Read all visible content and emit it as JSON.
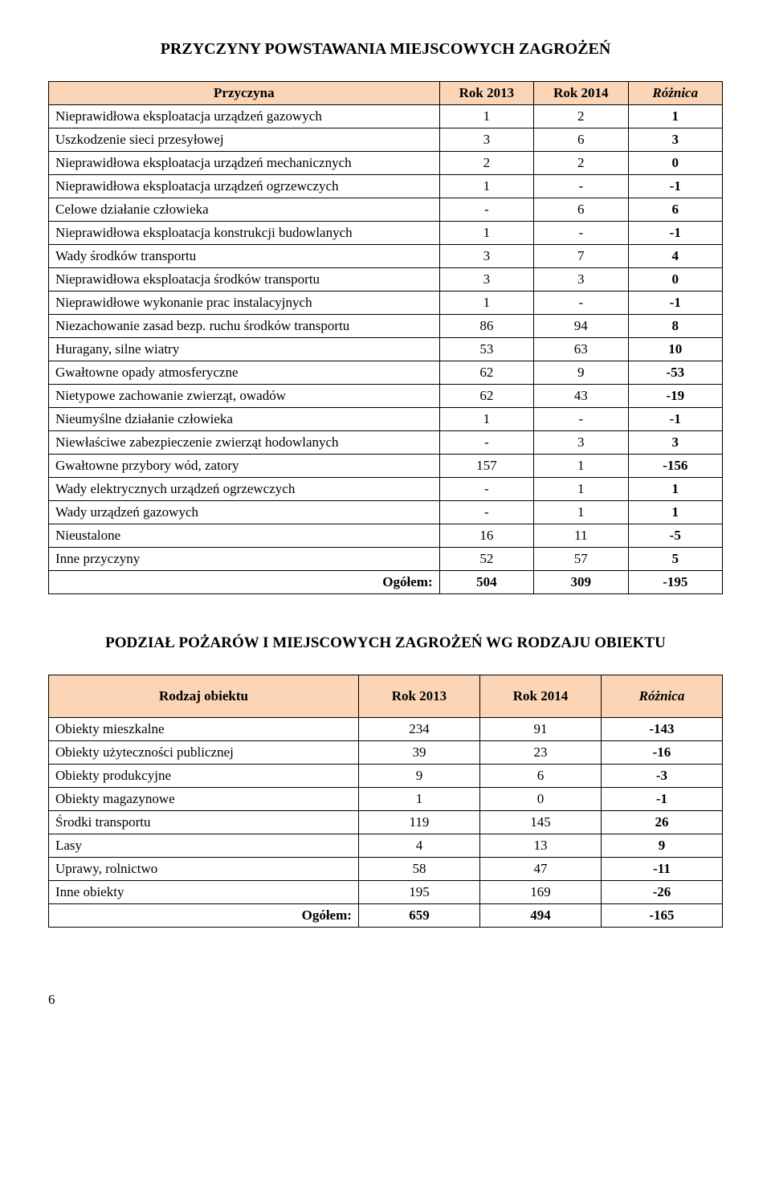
{
  "table1": {
    "title": "PRZYCZYNY POWSTAWANIA MIEJSCOWYCH ZAGROŻEŃ",
    "headers": [
      "Przyczyna",
      "Rok 2013",
      "Rok 2014",
      "Różnica"
    ],
    "col_widths": [
      "58%",
      "14%",
      "14%",
      "14%"
    ],
    "header_bg": "#fbd5b5",
    "rows": [
      {
        "desc": "Nieprawidłowa eksploatacja urządzeń gazowych",
        "v1": "1",
        "v2": "2",
        "d": "1"
      },
      {
        "desc": "Uszkodzenie sieci przesyłowej",
        "v1": "3",
        "v2": "6",
        "d": "3"
      },
      {
        "desc": "Nieprawidłowa eksploatacja urządzeń mechanicznych",
        "v1": "2",
        "v2": "2",
        "d": "0"
      },
      {
        "desc": "Nieprawidłowa eksploatacja urządzeń ogrzewczych",
        "v1": "1",
        "v2": "-",
        "d": "-1"
      },
      {
        "desc": "Celowe działanie człowieka",
        "v1": "-",
        "v2": "6",
        "d": "6"
      },
      {
        "desc": "Nieprawidłowa eksploatacja konstrukcji budowlanych",
        "v1": "1",
        "v2": "-",
        "d": "-1"
      },
      {
        "desc": "Wady środków transportu",
        "v1": "3",
        "v2": "7",
        "d": "4"
      },
      {
        "desc": "Nieprawidłowa eksploatacja środków transportu",
        "v1": "3",
        "v2": "3",
        "d": "0"
      },
      {
        "desc": "Nieprawidłowe wykonanie prac instalacyjnych",
        "v1": "1",
        "v2": "-",
        "d": "-1"
      },
      {
        "desc": "Niezachowanie zasad bezp. ruchu środków transportu",
        "v1": "86",
        "v2": "94",
        "d": "8"
      },
      {
        "desc": "Huragany, silne wiatry",
        "v1": "53",
        "v2": "63",
        "d": "10"
      },
      {
        "desc": "Gwałtowne opady atmosferyczne",
        "v1": "62",
        "v2": "9",
        "d": "-53"
      },
      {
        "desc": "Nietypowe zachowanie zwierząt, owadów",
        "v1": "62",
        "v2": "43",
        "d": "-19"
      },
      {
        "desc": "Nieumyślne działanie człowieka",
        "v1": "1",
        "v2": "-",
        "d": "-1"
      },
      {
        "desc": "Niewłaściwe zabezpieczenie zwierząt hodowlanych",
        "v1": "-",
        "v2": "3",
        "d": "3"
      },
      {
        "desc": "Gwałtowne przybory  wód, zatory",
        "v1": "157",
        "v2": "1",
        "d": "-156"
      },
      {
        "desc": "Wady elektrycznych urządzeń ogrzewczych",
        "v1": "-",
        "v2": "1",
        "d": "1"
      },
      {
        "desc": "Wady urządzeń gazowych",
        "v1": "-",
        "v2": "1",
        "d": "1"
      },
      {
        "desc": "Nieustalone",
        "v1": "16",
        "v2": "11",
        "d": "-5"
      },
      {
        "desc": "Inne przyczyny",
        "v1": "52",
        "v2": "57",
        "d": "5"
      }
    ],
    "total": {
      "desc": "Ogółem:",
      "v1": "504",
      "v2": "309",
      "d": "-195"
    }
  },
  "table2": {
    "title": "PODZIAŁ POŻARÓW I MIEJSCOWYCH ZAGROŻEŃ WG RODZAJU OBIEKTU",
    "headers": [
      "Rodzaj obiektu",
      "Rok 2013",
      "Rok 2014",
      "Różnica"
    ],
    "col_widths": [
      "46%",
      "18%",
      "18%",
      "18%"
    ],
    "header_bg": "#fbd5b5",
    "rows": [
      {
        "desc": "Obiekty mieszkalne",
        "v1": "234",
        "v2": "91",
        "d": "-143"
      },
      {
        "desc": "Obiekty użyteczności publicznej",
        "v1": "39",
        "v2": "23",
        "d": "-16"
      },
      {
        "desc": "Obiekty produkcyjne",
        "v1": "9",
        "v2": "6",
        "d": "-3"
      },
      {
        "desc": "Obiekty magazynowe",
        "v1": "1",
        "v2": "0",
        "d": "-1"
      },
      {
        "desc": "Środki transportu",
        "v1": "119",
        "v2": "145",
        "d": "26"
      },
      {
        "desc": "Lasy",
        "v1": "4",
        "v2": "13",
        "d": "9"
      },
      {
        "desc": "Uprawy, rolnictwo",
        "v1": "58",
        "v2": "47",
        "d": "-11"
      },
      {
        "desc": "Inne obiekty",
        "v1": "195",
        "v2": "169",
        "d": "-26"
      }
    ],
    "total": {
      "desc": "Ogółem:",
      "v1": "659",
      "v2": "494",
      "d": "-165"
    }
  },
  "page_number": "6"
}
